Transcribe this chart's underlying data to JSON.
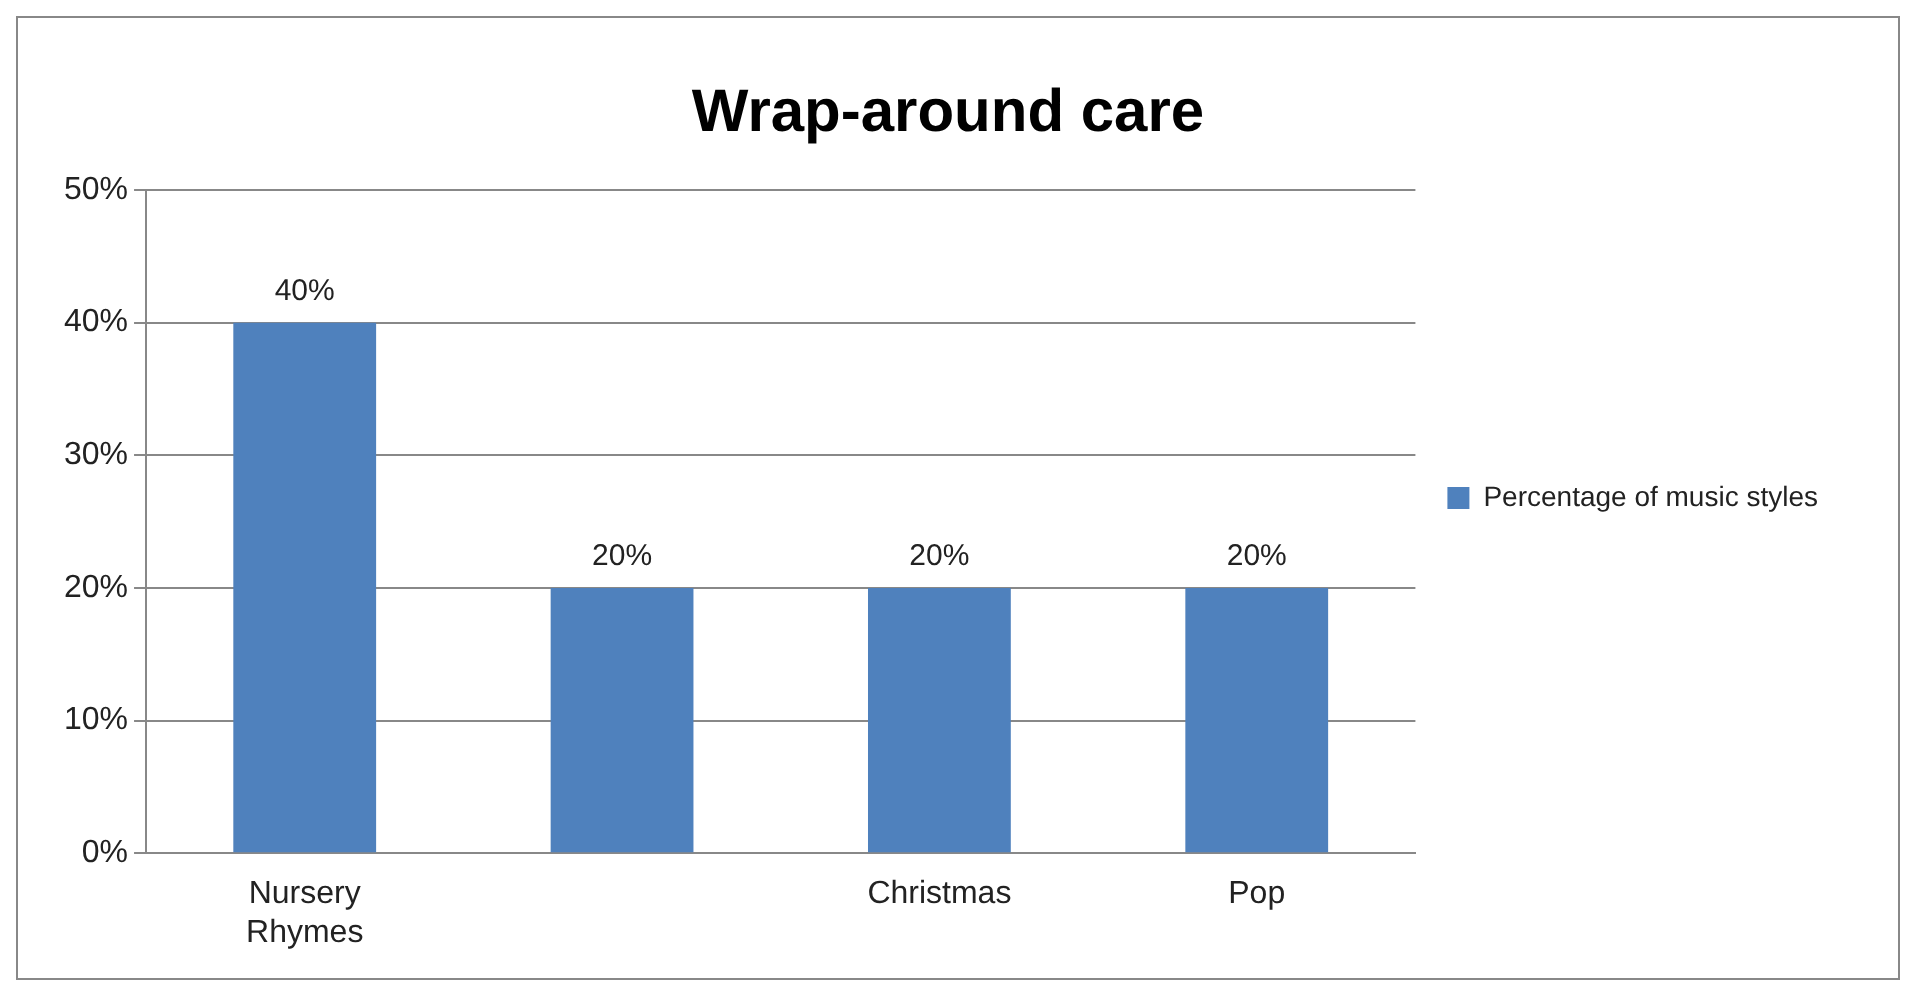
{
  "chart_data": {
    "type": "bar",
    "title": "Wrap-around care",
    "categories": [
      "Nursery Rhymes",
      null,
      "Christmas",
      "Pop"
    ],
    "series": [
      {
        "name": "Percentage of music styles",
        "color": "#4f81bd",
        "values": [
          40,
          20,
          20,
          20
        ],
        "value_labels": [
          "40%",
          "20%",
          "20%",
          "20%"
        ]
      }
    ],
    "ylim": [
      0,
      50
    ],
    "yticks": [
      {
        "value": 0,
        "label": "0%"
      },
      {
        "value": 10,
        "label": "10%"
      },
      {
        "value": 20,
        "label": "20%"
      },
      {
        "value": 30,
        "label": "30%"
      },
      {
        "value": 40,
        "label": "40%"
      },
      {
        "value": 50,
        "label": "50%"
      }
    ],
    "grid": "y",
    "legend": "right"
  }
}
